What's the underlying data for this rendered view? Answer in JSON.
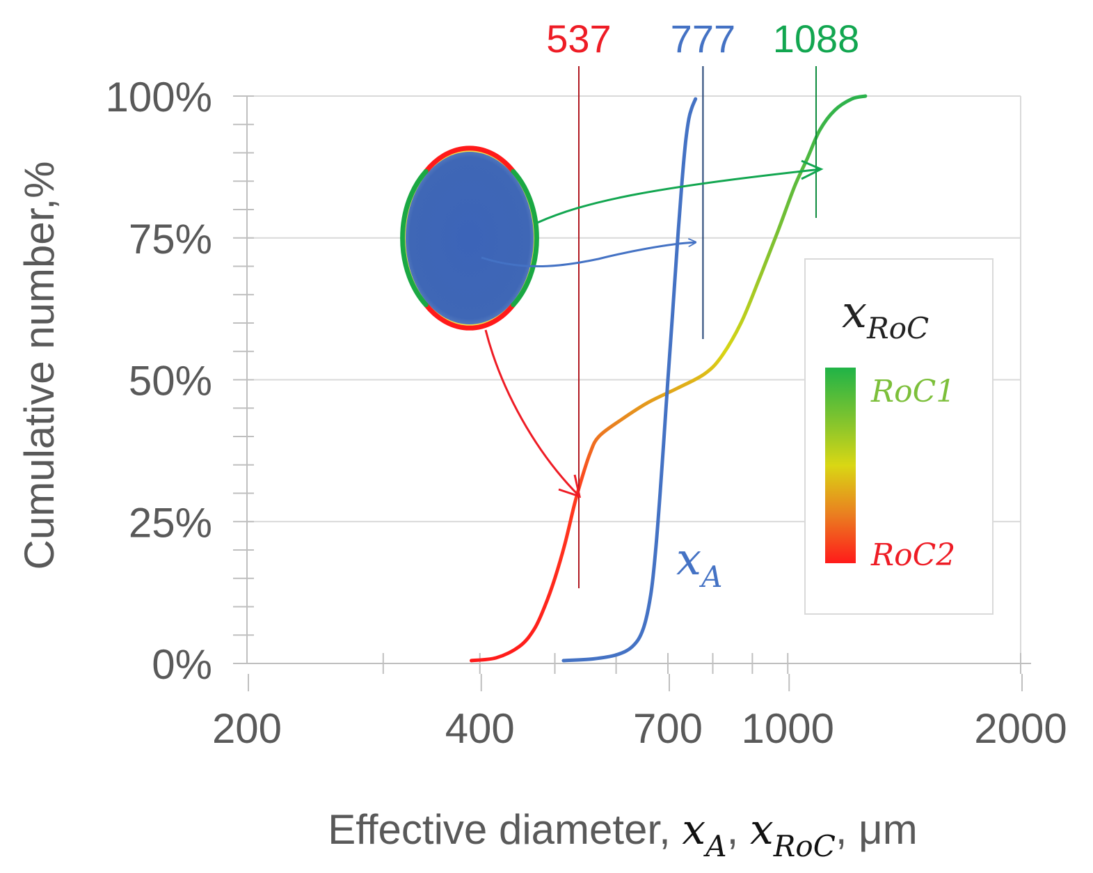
{
  "chart_data": {
    "type": "line",
    "xlabel": {
      "prefix": "Effective diameter, ",
      "var1": "x",
      "sub1": "A",
      "sep": ", ",
      "var2": "x",
      "sub2": "RoC",
      "suffix": ", μm"
    },
    "ylabel": "Cumulative number,%",
    "x_scale": "log",
    "xlim": [
      200,
      2000
    ],
    "ylim": [
      0,
      100
    ],
    "x_ticks": [
      200,
      400,
      700,
      1000,
      2000
    ],
    "x_tick_labels": [
      "200",
      "400",
      "700",
      "1000",
      "2000"
    ],
    "y_ticks": [
      0,
      25,
      50,
      75,
      100
    ],
    "y_tick_labels": [
      "0%",
      "25%",
      "50%",
      "75%",
      "100%"
    ],
    "series": [
      {
        "name": "x_A",
        "color": "#4472c4",
        "points": [
          [
            513,
            0.5
          ],
          [
            560,
            0.8
          ],
          [
            600,
            1.5
          ],
          [
            630,
            3
          ],
          [
            650,
            6
          ],
          [
            665,
            12
          ],
          [
            675,
            20
          ],
          [
            684,
            30
          ],
          [
            692,
            40
          ],
          [
            700,
            50
          ],
          [
            710,
            62
          ],
          [
            720,
            74
          ],
          [
            730,
            85
          ],
          [
            738,
            92
          ],
          [
            745,
            96
          ],
          [
            752,
            98
          ],
          [
            760,
            99.5
          ]
        ]
      },
      {
        "name": "x_RoC",
        "colorscale": [
          "#ff1a1a",
          "#ff3b1f",
          "#e9811f",
          "#d8d514",
          "#86c22e",
          "#2bb24c"
        ],
        "points": [
          [
            390,
            0.5
          ],
          [
            420,
            1
          ],
          [
            450,
            3
          ],
          [
            470,
            6
          ],
          [
            485,
            10
          ],
          [
            500,
            15
          ],
          [
            515,
            21
          ],
          [
            530,
            28
          ],
          [
            540,
            32
          ],
          [
            555,
            37
          ],
          [
            570,
            40
          ],
          [
            610,
            43
          ],
          [
            660,
            46
          ],
          [
            720,
            48.5
          ],
          [
            780,
            51
          ],
          [
            820,
            54
          ],
          [
            870,
            60
          ],
          [
            920,
            68
          ],
          [
            970,
            76
          ],
          [
            1020,
            84
          ],
          [
            1060,
            89
          ],
          [
            1100,
            94
          ],
          [
            1150,
            97.5
          ],
          [
            1210,
            99.5
          ],
          [
            1260,
            100
          ]
        ]
      }
    ],
    "markers": [
      {
        "label": "537",
        "x": 537,
        "color": "#ee1c25"
      },
      {
        "label": "777",
        "x": 777,
        "color": "#4472c4"
      },
      {
        "label": "1088",
        "x": 1088,
        "color": "#12a650"
      }
    ],
    "annotations": {
      "curve_label": {
        "var": "x",
        "sub": "A"
      },
      "legend_title": {
        "var": "x",
        "sub": "RoC"
      },
      "legend_top": "RoC1",
      "legend_bottom": "RoC2"
    }
  }
}
